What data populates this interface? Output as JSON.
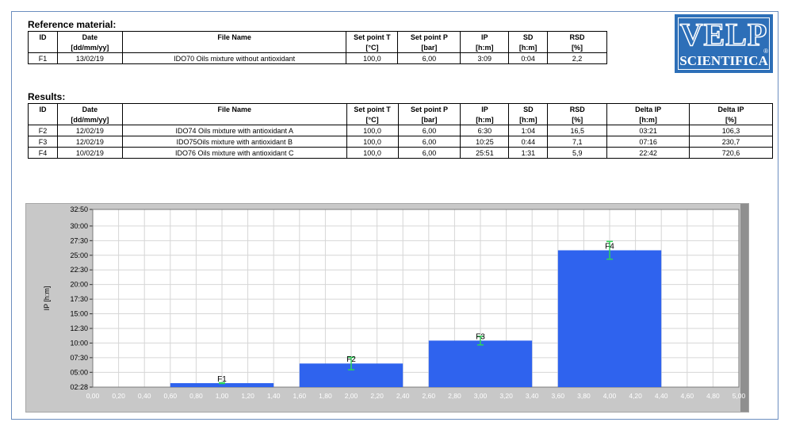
{
  "reference": {
    "title": "Reference material:",
    "headers": [
      "ID",
      "Date",
      "File Name",
      "Set point T",
      "Set point P",
      "IP",
      "SD",
      "RSD"
    ],
    "units": [
      "",
      "[dd/mm/yy]",
      "",
      "[°C]",
      "[bar]",
      "[h:m]",
      "[h:m]",
      "[%]"
    ],
    "rows": [
      [
        "F1",
        "13/02/19",
        "IDO70 Oils mixture without antioxidant",
        "100,0",
        "6,00",
        "3:09",
        "0:04",
        "2,2"
      ]
    ]
  },
  "results": {
    "title": "Results:",
    "headers": [
      "ID",
      "Date",
      "File Name",
      "Set point T",
      "Set point P",
      "IP",
      "SD",
      "RSD",
      "Delta IP",
      "Delta IP"
    ],
    "units": [
      "",
      "[dd/mm/yy]",
      "",
      "[°C]",
      "[bar]",
      "[h:m]",
      "[h:m]",
      "[%]",
      "[h:m]",
      "[%]"
    ],
    "rows": [
      [
        "F2",
        "12/02/19",
        "IDO74 Oils mixture with antioxidant A",
        "100,0",
        "6,00",
        "6:30",
        "1:04",
        "16,5",
        "03:21",
        "106,3"
      ],
      [
        "F3",
        "12/02/19",
        "IDO75Oils mixture with antioxidant B",
        "100,0",
        "6,00",
        "10:25",
        "0:44",
        "7,1",
        "07:16",
        "230,7"
      ],
      [
        "F4",
        "10/02/19",
        "IDO76 Oils mixture with antioxidant C",
        "100,0",
        "6,00",
        "25:51",
        "1:31",
        "5,9",
        "22:42",
        "720,6"
      ]
    ]
  },
  "logo": {
    "top": "VELP",
    "bottom": "SCIENTIFICA",
    "reg": "®"
  },
  "chart_data": {
    "type": "bar",
    "ylabel": "IP [h:m]",
    "xlim": [
      0,
      5
    ],
    "ylim_minutes": [
      148,
      1970
    ],
    "y_ticks": [
      {
        "label": "02:28",
        "minutes": 148
      },
      {
        "label": "05:00",
        "minutes": 300
      },
      {
        "label": "07:30",
        "minutes": 450
      },
      {
        "label": "10:00",
        "minutes": 600
      },
      {
        "label": "12:30",
        "minutes": 750
      },
      {
        "label": "15:00",
        "minutes": 900
      },
      {
        "label": "17:30",
        "minutes": 1050
      },
      {
        "label": "20:00",
        "minutes": 1200
      },
      {
        "label": "22:30",
        "minutes": 1350
      },
      {
        "label": "25:00",
        "minutes": 1500
      },
      {
        "label": "27:30",
        "minutes": 1650
      },
      {
        "label": "30:00",
        "minutes": 1800
      },
      {
        "label": "32:50",
        "minutes": 1970
      }
    ],
    "x_ticks": [
      "0,00",
      "0,20",
      "0,40",
      "0,60",
      "0,80",
      "1,00",
      "1,20",
      "1,40",
      "1,60",
      "1,80",
      "2,00",
      "2,20",
      "2,40",
      "2,60",
      "2,80",
      "3,00",
      "3,20",
      "3,40",
      "3,60",
      "3,80",
      "4,00",
      "4,20",
      "4,40",
      "4,60",
      "4,80",
      "5,00"
    ],
    "bars": [
      {
        "label": "F1",
        "x_center": 1.0,
        "width": 0.8,
        "value_minutes": 189,
        "sd_minutes": 4
      },
      {
        "label": "F2",
        "x_center": 2.0,
        "width": 0.8,
        "value_minutes": 390,
        "sd_minutes": 64
      },
      {
        "label": "F3",
        "x_center": 3.0,
        "width": 0.8,
        "value_minutes": 625,
        "sd_minutes": 44
      },
      {
        "label": "F4",
        "x_center": 4.0,
        "width": 0.8,
        "value_minutes": 1551,
        "sd_minutes": 91
      }
    ],
    "grid": true,
    "colors": {
      "bar": "#2f63ee",
      "errorbar": "#2fd45a",
      "grid": "#d6d6d6",
      "plot_bg": "#ffffff"
    }
  }
}
